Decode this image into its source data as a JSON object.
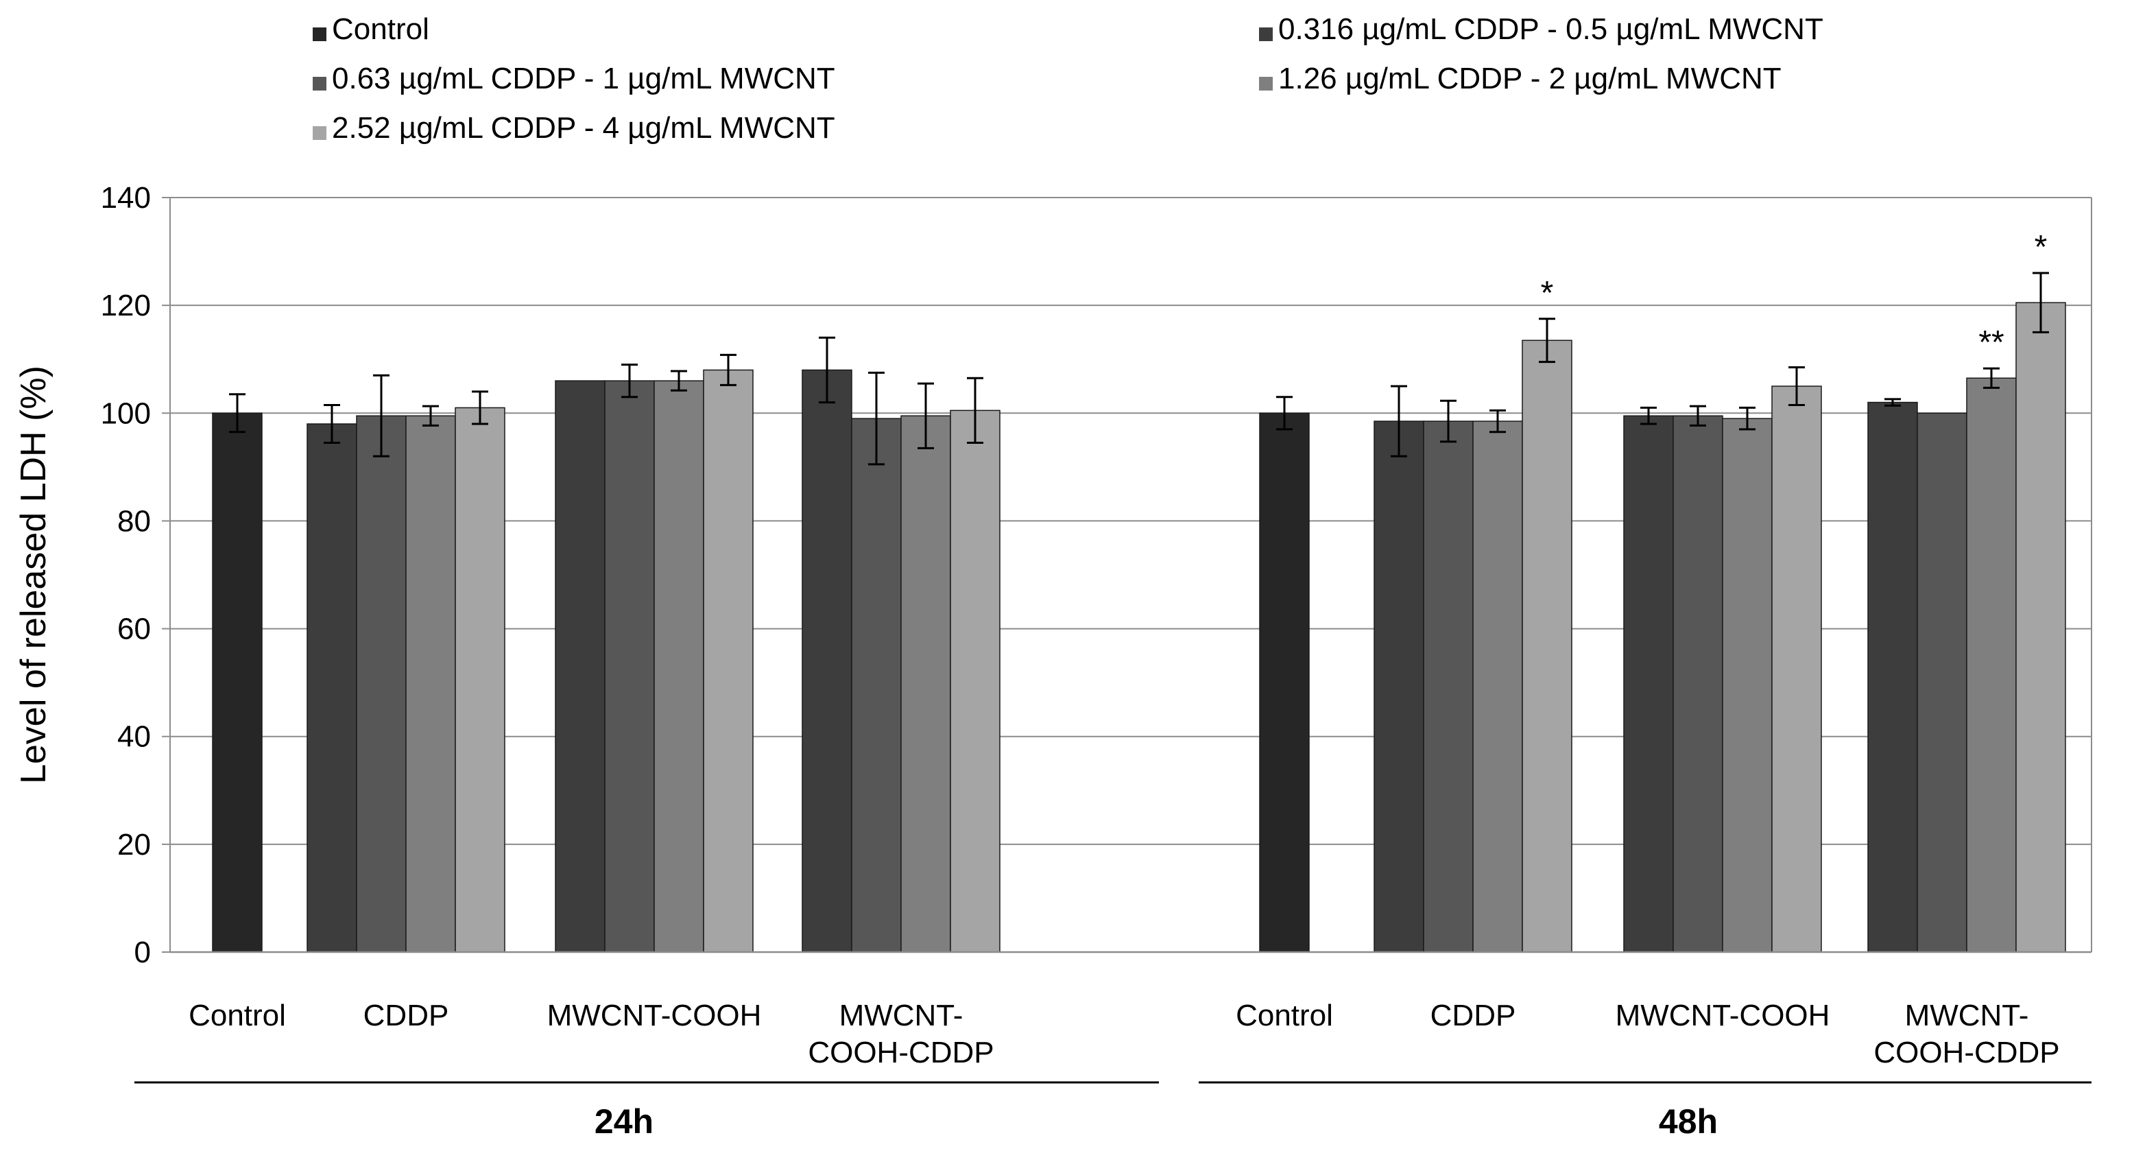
{
  "chart_data": {
    "type": "bar",
    "title": "",
    "xlabel": "",
    "ylabel": "Level of released LDH (%)",
    "ylim": [
      0,
      140
    ],
    "yticks": [
      0,
      20,
      40,
      60,
      80,
      100,
      120,
      140
    ],
    "grid": true,
    "legend_position": "top",
    "series": [
      {
        "name": "Control",
        "color": "#262626"
      },
      {
        "name": "0.316 µg/mL CDDP - 0.5 µg/mL MWCNT",
        "color": "#3d3d3d"
      },
      {
        "name": "0.63 µg/mL CDDP - 1 µg/mL MWCNT",
        "color": "#575757"
      },
      {
        "name": "1.26 µg/mL CDDP - 2 µg/mL MWCNT",
        "color": "#7f7f7f"
      },
      {
        "name": "2.52 µg/mL CDDP - 4 µg/mL MWCNT",
        "color": "#a5a5a5"
      }
    ],
    "groups": [
      {
        "label": "24h",
        "categories": [
          {
            "label": [
              "Control"
            ],
            "bars": [
              {
                "series": 0,
                "value": 100,
                "error": 3.5
              }
            ]
          },
          {
            "label": [
              "CDDP"
            ],
            "bars": [
              {
                "series": 1,
                "value": 98,
                "error": 3.5
              },
              {
                "series": 2,
                "value": 99.5,
                "error": 7.5
              },
              {
                "series": 3,
                "value": 99.5,
                "error": 1.8
              },
              {
                "series": 4,
                "value": 101,
                "error": 3
              }
            ]
          },
          {
            "label": [
              "MWCNT-COOH"
            ],
            "bars": [
              {
                "series": 1,
                "value": 106,
                "error": 0
              },
              {
                "series": 2,
                "value": 106,
                "error": 3
              },
              {
                "series": 3,
                "value": 106,
                "error": 1.8
              },
              {
                "series": 4,
                "value": 108,
                "error": 2.8
              }
            ]
          },
          {
            "label": [
              "MWCNT-",
              "COOH-CDDP"
            ],
            "bars": [
              {
                "series": 1,
                "value": 108,
                "error": 6
              },
              {
                "series": 2,
                "value": 99,
                "error": 8.5
              },
              {
                "series": 3,
                "value": 99.5,
                "error": 6
              },
              {
                "series": 4,
                "value": 100.5,
                "error": 6
              }
            ]
          }
        ]
      },
      {
        "label": "48h",
        "categories": [
          {
            "label": [
              "Control"
            ],
            "bars": [
              {
                "series": 0,
                "value": 100,
                "error": 3
              }
            ]
          },
          {
            "label": [
              "CDDP"
            ],
            "bars": [
              {
                "series": 1,
                "value": 98.5,
                "error": 6.5
              },
              {
                "series": 2,
                "value": 98.5,
                "error": 3.8
              },
              {
                "series": 3,
                "value": 98.5,
                "error": 2
              },
              {
                "series": 4,
                "value": 113.5,
                "error": 4,
                "annotation": "*"
              }
            ]
          },
          {
            "label": [
              "MWCNT-COOH"
            ],
            "bars": [
              {
                "series": 1,
                "value": 99.5,
                "error": 1.5
              },
              {
                "series": 2,
                "value": 99.5,
                "error": 1.8
              },
              {
                "series": 3,
                "value": 99,
                "error": 2
              },
              {
                "series": 4,
                "value": 105,
                "error": 3.5
              }
            ]
          },
          {
            "label": [
              "MWCNT-",
              "COOH-CDDP"
            ],
            "bars": [
              {
                "series": 1,
                "value": 102,
                "error": 0.6
              },
              {
                "series": 2,
                "value": 100,
                "error": 0
              },
              {
                "series": 3,
                "value": 106.5,
                "error": 1.8,
                "annotation": "**"
              },
              {
                "series": 4,
                "value": 120.5,
                "error": 5.5,
                "annotation": "*"
              }
            ]
          }
        ]
      }
    ]
  }
}
